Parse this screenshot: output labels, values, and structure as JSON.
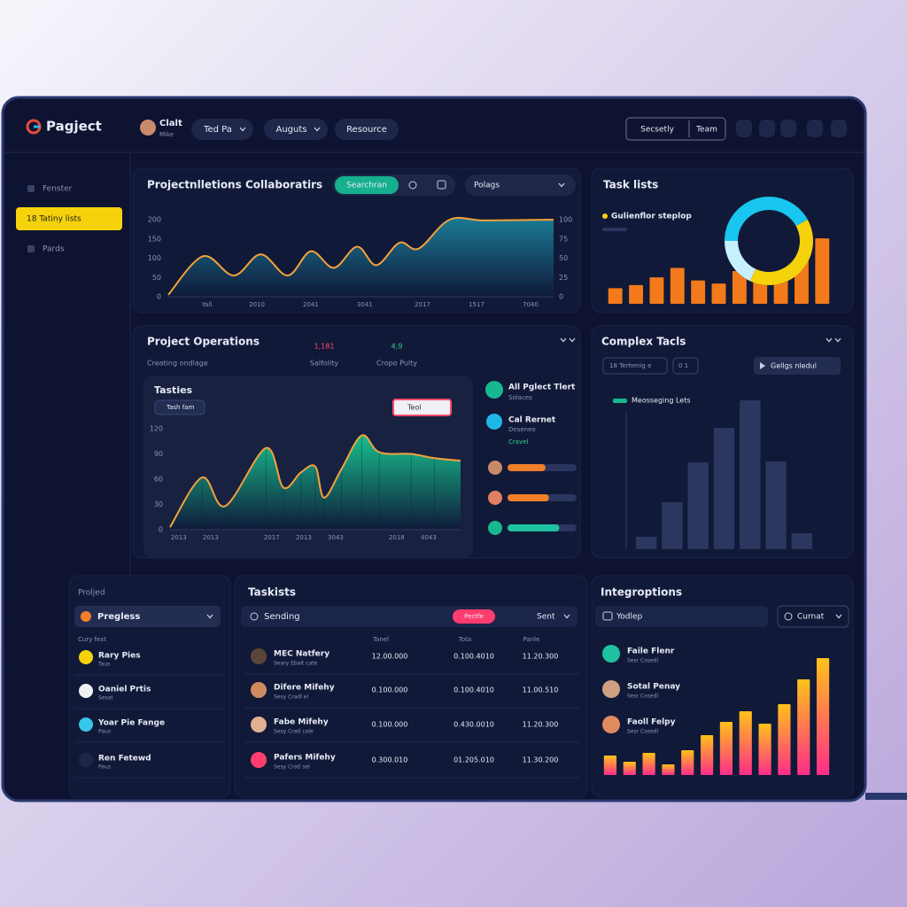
{
  "header": {
    "logo": "Pagject",
    "user_name": "Clalt",
    "user_role": "Mike",
    "tabs": [
      "Ted Pa",
      "Auguts",
      "Resource"
    ],
    "actions": [
      "Secsetly",
      "Team"
    ]
  },
  "sidebar": {
    "items": [
      "Fenster",
      "18 Tatiny lists",
      "Pards"
    ],
    "active": 1
  },
  "projections": {
    "tab": "Collaboratirs",
    "toggle": "Searchran",
    "select": "Polags"
  },
  "operations": {
    "title": "Project Operations",
    "subtitle": "Creating ondlage",
    "stats": [
      {
        "value": "1,181",
        "label": "Salfolity",
        "color": "#ff4d6d"
      },
      {
        "value": "4,9",
        "label": "Cropo Pulty",
        "color": "#2fd28a"
      }
    ],
    "chip": "Tash fam",
    "button": "Teol"
  },
  "alerts": [
    {
      "title": "All Pglect Tlert",
      "sub": "Solaces"
    },
    {
      "title": "Cal Rernet",
      "sub": "Deseneo",
      "extra": "Cravel"
    }
  ],
  "progress": [
    {
      "value": 55,
      "color": "#f07f2a"
    },
    {
      "value": 60,
      "color": "#f07f2a"
    },
    {
      "value": 75,
      "color": "#1fc2a0"
    }
  ],
  "complex": {
    "chips": [
      "18 Terhenig e",
      "0 1"
    ],
    "button": "Gellgs nledul"
  },
  "people_panel": {
    "title": "Proljed",
    "dropdown": "Pregless",
    "section": "Cury fext",
    "people": [
      {
        "name": "Rary Pies",
        "sub": "Taus"
      },
      {
        "name": "Oaniel Prtis",
        "sub": "Sesat"
      },
      {
        "name": "Yoar Pie Fange",
        "sub": "Paus"
      },
      {
        "name": "Ren Fetewd",
        "sub": "Paus"
      }
    ]
  },
  "table": {
    "title": "Taskists",
    "search": "Sending",
    "tag": "Pectfe",
    "sort": "Sent",
    "columns": [
      "Tanel",
      "Tota",
      "Panle"
    ],
    "rows": [
      {
        "name": "MEC Natfery",
        "sub": "Seary Ebalt cate",
        "cells": [
          "12.00.000",
          "0.100.4010",
          "11.20.300"
        ]
      },
      {
        "name": "Difere Mifehy",
        "sub": "Sesy Cradl el",
        "cells": [
          "0.100.000",
          "0.100.4010",
          "11.00.510"
        ]
      },
      {
        "name": "Fabe Mifehy",
        "sub": "Sesy Cratl cale",
        "cells": [
          "0.100.000",
          "0.430.0010",
          "11.20.300"
        ]
      },
      {
        "name": "Pafers Mifehy",
        "sub": "Sesy Cratl sel",
        "cells": [
          "0.300.010",
          "01.205.010",
          "11.30.200"
        ]
      }
    ]
  },
  "integrations": {
    "title": "Integroptions",
    "search": "Yodlep",
    "select": "Curnat",
    "people": [
      {
        "name": "Faile Flenr",
        "sub": "Sesr Cosedl"
      },
      {
        "name": "Sotal Penay",
        "sub": "Sesr Cosedl"
      },
      {
        "name": "Faoll Felpy",
        "sub": "Sesr Cosedl"
      }
    ]
  },
  "chart_data": [
    {
      "type": "area",
      "title": "Projectnlletions",
      "x": [
        0,
        9,
        17,
        24,
        31,
        37,
        43,
        49,
        54,
        60,
        65,
        73,
        82,
        100
      ],
      "values": [
        5,
        105,
        55,
        110,
        55,
        118,
        75,
        130,
        82,
        140,
        125,
        200,
        198,
        200
      ],
      "xlim": [
        0,
        100
      ],
      "xticks": [
        {
          "value": 10,
          "label": "Yall"
        },
        {
          "value": 23,
          "label": "2010"
        },
        {
          "value": 37,
          "label": "2041"
        },
        {
          "value": 51,
          "label": "3041"
        },
        {
          "value": 66,
          "label": "2017"
        },
        {
          "value": 80,
          "label": "1517"
        },
        {
          "value": 94,
          "label": "7040"
        }
      ],
      "ylim": [
        0,
        200
      ],
      "yticks": [
        0,
        50,
        100,
        150,
        200
      ],
      "y2lim": [
        0,
        100
      ],
      "y2ticks": [
        0,
        25,
        50,
        75,
        100
      ],
      "color": "#f4a23a",
      "fill": "#1b7a94",
      "drop_lines": false
    },
    {
      "type": "pie",
      "title": "Task lists",
      "legend": "Gulienflor steplop",
      "legend_color": "#f5d20c",
      "values": [
        42,
        40,
        18
      ],
      "colors": [
        "#19c6ef",
        "#f5d20c",
        "#c7f0ff"
      ]
    },
    {
      "type": "bar",
      "values": [
        20,
        24,
        34,
        46,
        30,
        26,
        42,
        58,
        64,
        72,
        84
      ],
      "ylim": [
        0,
        100
      ],
      "color": "#f27a1a"
    },
    {
      "type": "area",
      "title": "Tasties",
      "x": [
        0,
        11,
        19,
        33,
        39,
        45,
        50,
        53,
        59,
        66,
        72,
        83,
        91,
        100
      ],
      "values": [
        3,
        62,
        28,
        97,
        50,
        68,
        75,
        38,
        72,
        112,
        92,
        90,
        85,
        82
      ],
      "xlim": [
        0,
        100
      ],
      "xticks": [
        {
          "value": 3,
          "label": "2013"
        },
        {
          "value": 14,
          "label": "2013"
        },
        {
          "value": 35,
          "label": "2017"
        },
        {
          "value": 46,
          "label": "2013"
        },
        {
          "value": 57,
          "label": "3043"
        },
        {
          "value": 78,
          "label": "2018"
        },
        {
          "value": 89,
          "label": "4043"
        }
      ],
      "ylim": [
        0,
        120
      ],
      "yticks": [
        0,
        30,
        60,
        90,
        120
      ],
      "color": "#f4a23a",
      "fill": "#18c08f",
      "drop_lines": true
    },
    {
      "type": "bar",
      "title": "Complex Tacls",
      "legend": "Meosseging Lets",
      "legend_color": "#17b890",
      "values": [
        14,
        53,
        98,
        137,
        168,
        99,
        18
      ],
      "ylim": [
        0,
        180
      ],
      "color": "#2c3760"
    },
    {
      "type": "bar",
      "values": [
        22,
        15,
        25,
        12,
        28,
        45,
        60,
        72,
        58,
        80,
        108,
        132
      ],
      "ylim": [
        0,
        140
      ],
      "gradient": [
        "#ff2d8a",
        "#ffc21a"
      ]
    }
  ]
}
